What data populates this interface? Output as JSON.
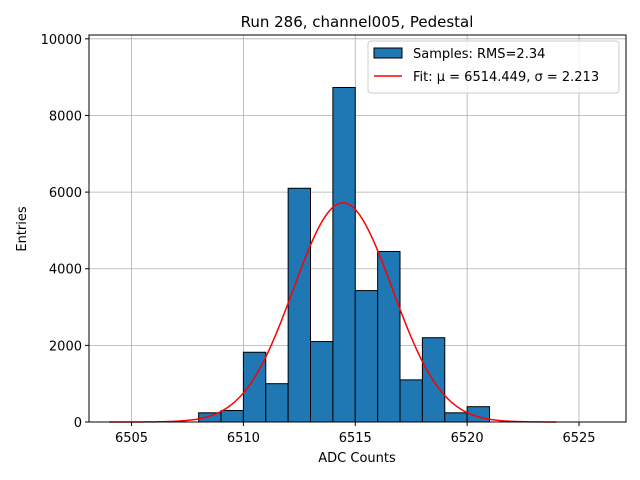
{
  "chart_data": {
    "type": "bar",
    "title": "Run 286, channel005, Pedestal",
    "xlabel": "ADC Counts",
    "ylabel": "Entries",
    "xlim": [
      6503.1,
      6527.1
    ],
    "ylim": [
      0,
      10100
    ],
    "x_ticks": [
      6505,
      6510,
      6515,
      6520,
      6525
    ],
    "y_ticks": [
      0,
      2000,
      4000,
      6000,
      8000,
      10000
    ],
    "grid": true,
    "legend_position": "top-right",
    "bin_width": 1,
    "bins": [
      {
        "left": 6508,
        "value": 240
      },
      {
        "left": 6509,
        "value": 300
      },
      {
        "left": 6510,
        "value": 1820
      },
      {
        "left": 6511,
        "value": 1000
      },
      {
        "left": 6512,
        "value": 6100
      },
      {
        "left": 6513,
        "value": 2100
      },
      {
        "left": 6514,
        "value": 8730
      },
      {
        "left": 6515,
        "value": 3430
      },
      {
        "left": 6516,
        "value": 4450
      },
      {
        "left": 6517,
        "value": 1100
      },
      {
        "left": 6518,
        "value": 2200
      },
      {
        "left": 6519,
        "value": 240
      },
      {
        "left": 6520,
        "value": 400
      }
    ],
    "series": [
      {
        "name": "Samples: RMS=2.34",
        "kind": "histogram",
        "color": "#1f77b4",
        "edge_color": "#000000"
      },
      {
        "name": "Fit: μ = 6514.449, σ = 2.213",
        "kind": "gaussian_fit",
        "color": "#ff0000",
        "mu": 6514.449,
        "sigma": 2.213,
        "amplitude": 5720,
        "x_range": [
          6504,
          6524
        ]
      }
    ]
  }
}
